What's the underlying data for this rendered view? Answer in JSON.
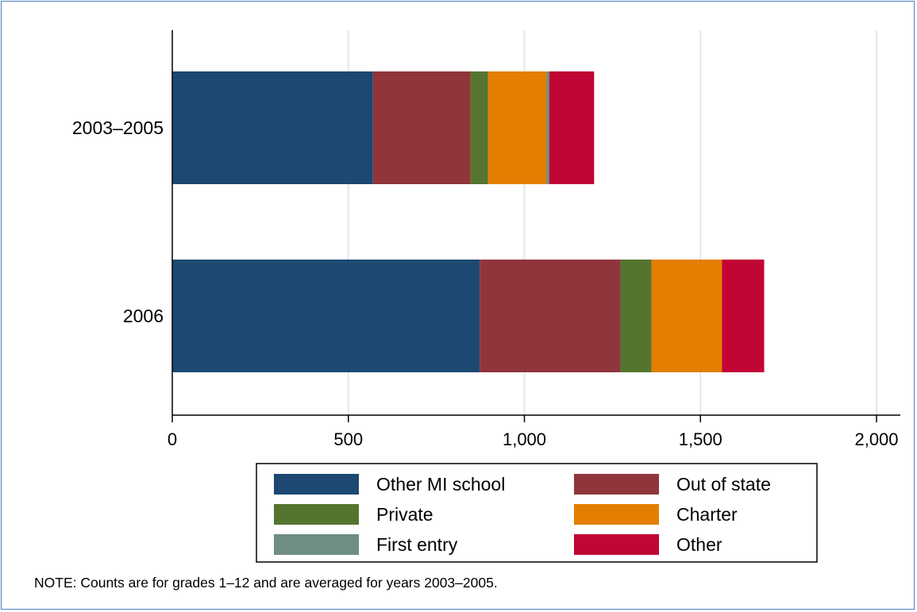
{
  "chart_data": {
    "type": "bar",
    "orientation": "horizontal",
    "stacked": true,
    "categories": [
      "2003–2005",
      "2006"
    ],
    "series": [
      {
        "name": "Other MI school",
        "color": "#1c4872",
        "values": [
          570,
          873
        ]
      },
      {
        "name": "Out of state",
        "color": "#90353b",
        "values": [
          277,
          400
        ]
      },
      {
        "name": "Private",
        "color": "#55752f",
        "values": [
          50,
          88
        ]
      },
      {
        "name": "Charter",
        "color": "#e37e00",
        "values": [
          166,
          200
        ]
      },
      {
        "name": "First entry",
        "color": "#6e8e84",
        "values": [
          8,
          0
        ]
      },
      {
        "name": "Other",
        "color": "#c10534",
        "values": [
          127,
          120
        ]
      }
    ],
    "xlim": [
      0,
      2000
    ],
    "xticks": [
      0,
      500,
      1000,
      1500,
      2000
    ],
    "xtick_labels": [
      "0",
      "500",
      "1,000",
      "1,500",
      "2,000"
    ],
    "grid": true,
    "legend_position": "bottom",
    "legend_columns": 2
  },
  "note": "NOTE: Counts are for grades 1–12 and are averaged for years 2003–2005."
}
